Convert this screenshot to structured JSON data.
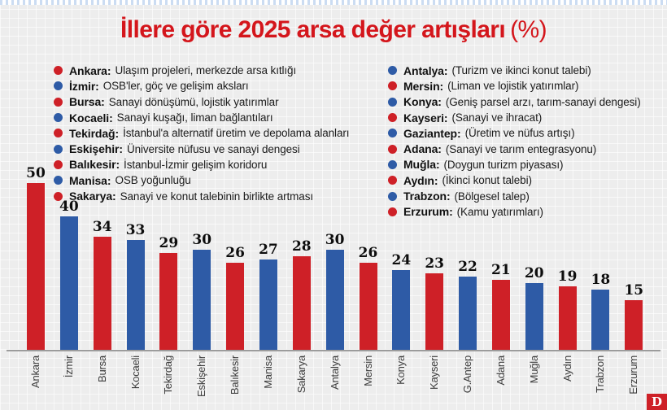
{
  "title": {
    "main": "İllere göre 2025 arsa değer artışları",
    "suffix": "(%)"
  },
  "colors": {
    "red": "#ce2027",
    "blue": "#2e5ba6",
    "title_red": "#d4161c",
    "axis_gray": "#9c9c9c",
    "background": "#ededed"
  },
  "legend": {
    "left": [
      {
        "color": "red",
        "name": "Ankara:",
        "desc": "Ulaşım projeleri, merkezde arsa kıtlığı"
      },
      {
        "color": "blue",
        "name": "İzmir:",
        "desc": "OSB'ler, göç ve gelişim aksları"
      },
      {
        "color": "red",
        "name": "Bursa:",
        "desc": "Sanayi dönüşümü, lojistik yatırımlar"
      },
      {
        "color": "blue",
        "name": "Kocaeli:",
        "desc": "Sanayi kuşağı, liman bağlantıları"
      },
      {
        "color": "red",
        "name": "Tekirdağ:",
        "desc": "İstanbul'a alternatif üretim ve depolama alanları"
      },
      {
        "color": "blue",
        "name": "Eskişehir:",
        "desc": "Üniversite nüfusu ve sanayi dengesi"
      },
      {
        "color": "red",
        "name": "Balıkesir:",
        "desc": "İstanbul-İzmir gelişim koridoru"
      },
      {
        "color": "blue",
        "name": "Manisa:",
        "desc": "OSB yoğunluğu"
      },
      {
        "color": "red",
        "name": "Sakarya:",
        "desc": "Sanayi ve konut talebinin birlikte artması"
      }
    ],
    "right": [
      {
        "color": "blue",
        "name": "Antalya:",
        "desc": "(Turizm ve ikinci konut talebi)"
      },
      {
        "color": "red",
        "name": "Mersin:",
        "desc": "(Liman ve lojistik yatırımlar)"
      },
      {
        "color": "blue",
        "name": "Konya:",
        "desc": "(Geniş parsel arzı, tarım-sanayi dengesi)"
      },
      {
        "color": "red",
        "name": "Kayseri:",
        "desc": "(Sanayi ve ihracat)"
      },
      {
        "color": "blue",
        "name": "Gaziantep:",
        "desc": "(Üretim ve nüfus artışı)"
      },
      {
        "color": "red",
        "name": "Adana:",
        "desc": "(Sanayi ve tarım entegrasyonu)"
      },
      {
        "color": "blue",
        "name": "Muğla:",
        "desc": "(Doygun turizm piyasası)"
      },
      {
        "color": "red",
        "name": "Aydın:",
        "desc": "(İkinci konut talebi)"
      },
      {
        "color": "blue",
        "name": "Trabzon:",
        "desc": "(Bölgesel talep)"
      },
      {
        "color": "red",
        "name": "Erzurum:",
        "desc": "(Kamu yatırımları)"
      }
    ]
  },
  "chart_data": {
    "type": "bar",
    "title": "İllere göre 2025 arsa değer artışları (%)",
    "categories": [
      "Ankara",
      "İzmir",
      "Bursa",
      "Kocaeli",
      "Tekirdağ",
      "Eskişehir",
      "Balıkesir",
      "Manisa",
      "Sakarya",
      "Antalya",
      "Mersin",
      "Konya",
      "Kayseri",
      "G.Antep",
      "Adana",
      "Muğla",
      "Aydın",
      "Trabzon",
      "Erzurum"
    ],
    "values": [
      50,
      40,
      34,
      33,
      29,
      30,
      26,
      27,
      28,
      30,
      26,
      24,
      23,
      22,
      21,
      20,
      19,
      18,
      15
    ],
    "bar_colors": [
      "red",
      "blue",
      "red",
      "blue",
      "red",
      "blue",
      "red",
      "blue",
      "red",
      "blue",
      "red",
      "blue",
      "red",
      "blue",
      "red",
      "blue",
      "red",
      "blue",
      "red"
    ],
    "xlabel": "",
    "ylabel": "",
    "ylim": [
      0,
      55
    ],
    "value_labels": true,
    "legend_position": "top-two-columns",
    "grid": "graph-paper-background"
  },
  "logo": {
    "text": "D"
  }
}
